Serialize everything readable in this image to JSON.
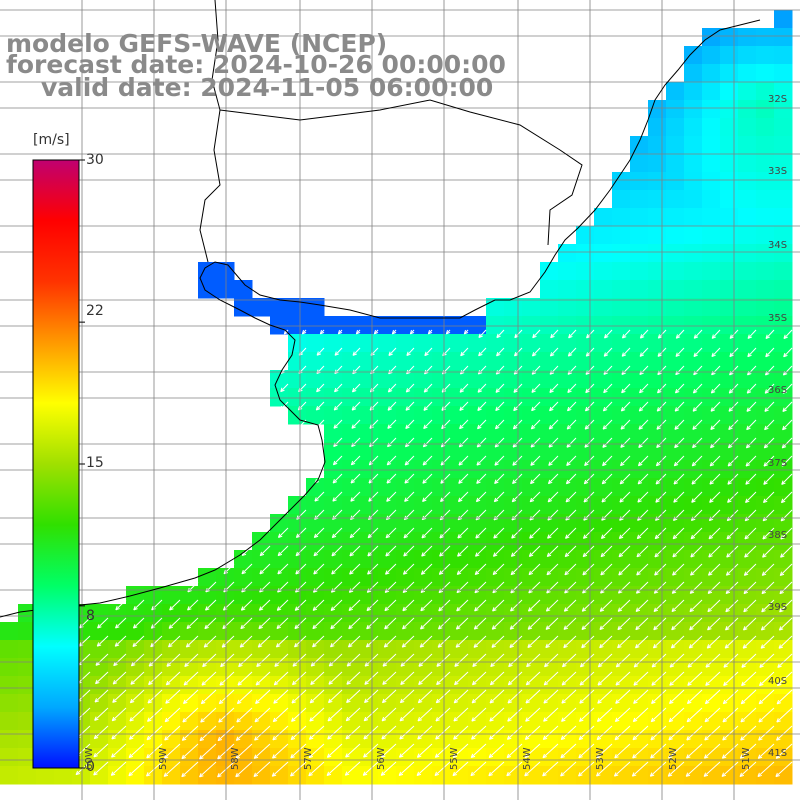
{
  "title": {
    "line1": "modelo GEFS-WAVE (NCEP)",
    "line2": "forecast date: 2024-10-26 00:00:00",
    "line3": "valid date: 2024-11-05 06:00:00"
  },
  "colorbar": {
    "unit": "[m/s]",
    "ticks": [
      "30",
      "22",
      "15",
      "8",
      "0"
    ],
    "tick_values": [
      30,
      22,
      15,
      8,
      0
    ],
    "colors": [
      "#0010ff",
      "#00a8ff",
      "#00ffff",
      "#00ff66",
      "#30e000",
      "#a0e000",
      "#ffff00",
      "#ff9900",
      "#ff3300",
      "#ff0000",
      "#c00070"
    ]
  },
  "map": {
    "lat_labels": [
      "32S",
      "33S",
      "34S",
      "35S",
      "36S",
      "37S",
      "38S",
      "39S",
      "40S",
      "41S"
    ],
    "lon_labels": [
      "60W",
      "59W",
      "58W",
      "57W",
      "56W",
      "55W",
      "54W",
      "53W",
      "52W",
      "51W"
    ],
    "colors": {
      "land": "#ffffff",
      "coast": "#000000",
      "grid": "#808080",
      "arrow": "#ffffff"
    }
  }
}
